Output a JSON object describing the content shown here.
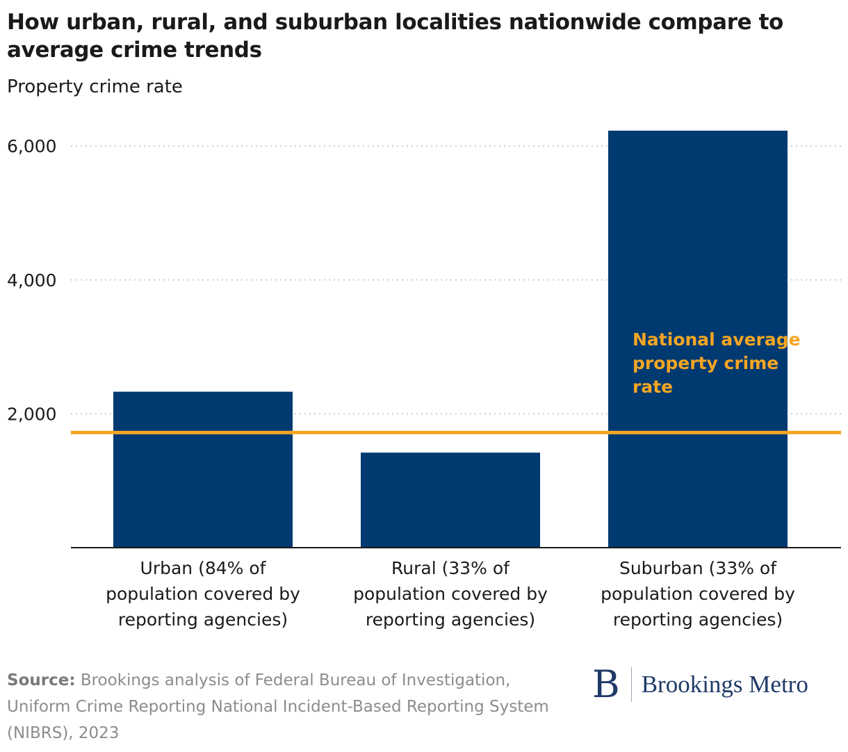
{
  "chart_data": {
    "type": "bar",
    "title": "How urban, rural, and suburban localities nationwide compare to average crime trends",
    "subtitle": "Property crime rate",
    "categories": [
      [
        "Urban (84% of",
        "population covered by",
        "reporting agencies)"
      ],
      [
        "Rural (33% of",
        "population covered by",
        "reporting agencies)"
      ],
      [
        "Suburban (33% of",
        "population covered by",
        "reporting agencies)"
      ]
    ],
    "values": [
      2330,
      1420,
      6230
    ],
    "yticks": [
      2000,
      4000,
      6000
    ],
    "ytick_labels": [
      "2,000",
      "4,000",
      "6,000"
    ],
    "ylim": [
      0,
      6230
    ],
    "reference_line": {
      "value": 1720,
      "label": [
        "National average",
        "property crime",
        "rate"
      ]
    },
    "grid": true,
    "colors": {
      "bar": "#003a70",
      "reference": "#f5a623",
      "grid": "#bdbdbd",
      "axis": "#1a1a1a"
    }
  },
  "source": {
    "label": "Source:",
    "text": " Brookings analysis of Federal Bureau of Investigation, Uniform Crime Reporting National Incident-Based Reporting System (NIBRS), 2023"
  },
  "logo": {
    "mark": "B",
    "text": "Brookings Metro"
  }
}
